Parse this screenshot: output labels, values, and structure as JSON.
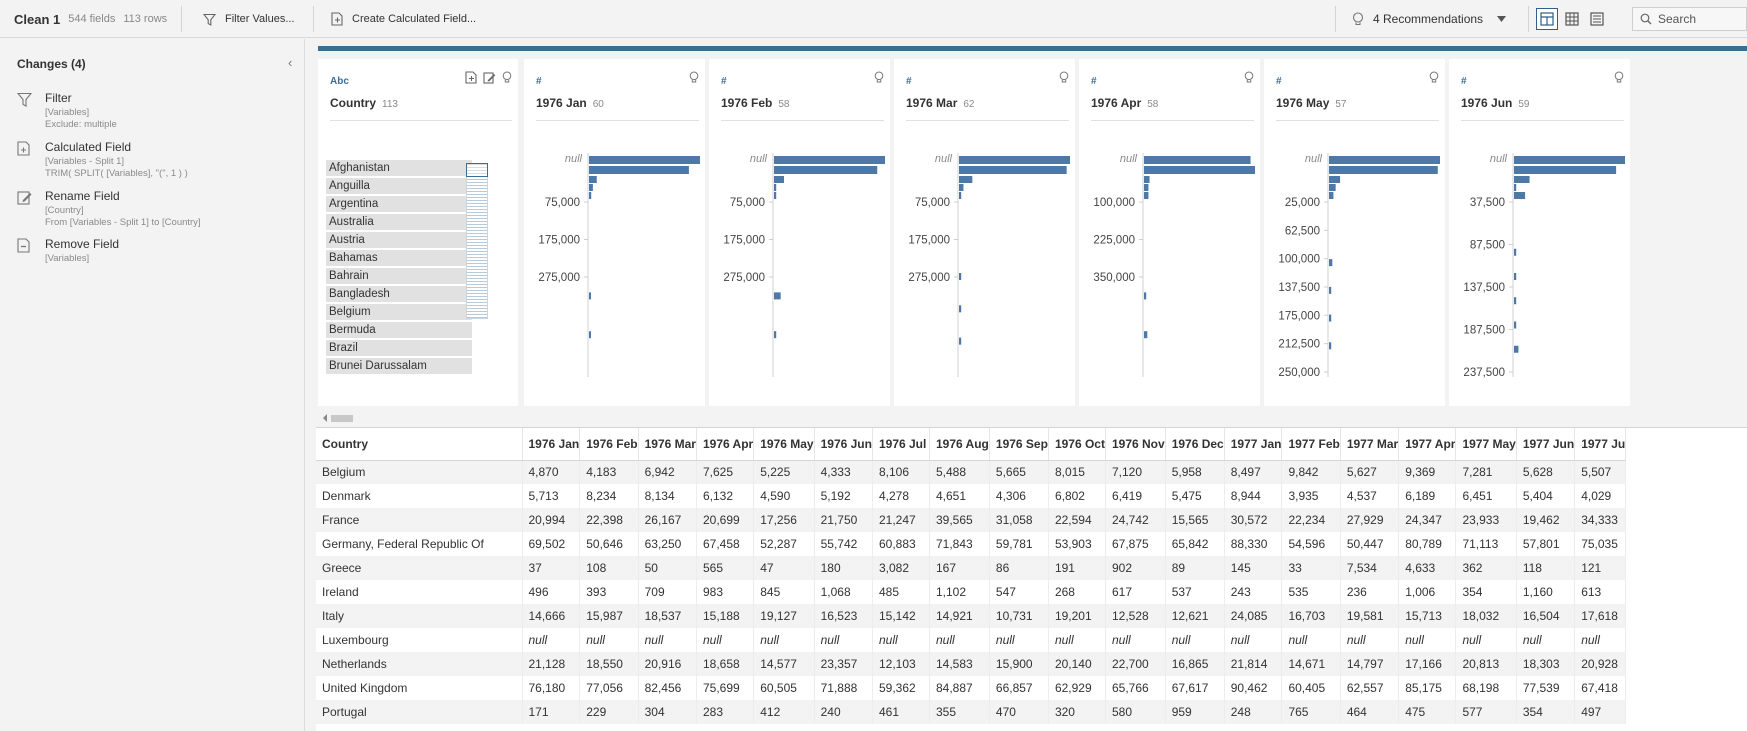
{
  "toolbar": {
    "step_title": "Clean 1",
    "field_count": "544 fields",
    "row_count": "113 rows",
    "filter_values_label": "Filter Values...",
    "calc_field_label": "Create Calculated Field...",
    "recommendations_label": "4 Recommendations",
    "search_placeholder": "Search"
  },
  "changes": {
    "header": "Changes (4)",
    "items": [
      {
        "icon": "filter-icon",
        "title": "Filter",
        "details": [
          "[Variables]",
          "Exclude: multiple"
        ]
      },
      {
        "icon": "calculated-field-icon",
        "title": "Calculated Field",
        "details": [
          "[Variables - Split 1]",
          "TRIM( SPLIT( [Variables], \"(\", 1 ) )"
        ]
      },
      {
        "icon": "rename-icon",
        "title": "Rename Field",
        "details": [
          "[Country]",
          "From [Variables - Split 1] to [Country]"
        ]
      },
      {
        "icon": "remove-field-icon",
        "title": "Remove Field",
        "details": [
          "[Variables]"
        ]
      }
    ]
  },
  "profile": {
    "country_card": {
      "type_label": "Abc",
      "name": "Country",
      "count": "113",
      "values": [
        "Afghanistan",
        "Anguilla",
        "Argentina",
        "Australia",
        "Austria",
        "Bahamas",
        "Bahrain",
        "Bangladesh",
        "Belgium",
        "Bermuda",
        "Brazil",
        "Brunei Darussalam"
      ]
    },
    "numeric_cards": [
      {
        "type_label": "#",
        "name": "1976 Jan",
        "count": "60",
        "null_label": "null",
        "ticks": [
          "75,000",
          "175,000",
          "275,000"
        ],
        "bar_lengths": [
          1.0,
          0.9,
          0.07,
          0.035,
          0.02,
          0.015,
          0.015
        ]
      },
      {
        "type_label": "#",
        "name": "1976 Feb",
        "count": "58",
        "null_label": "null",
        "ticks": [
          "75,000",
          "175,000",
          "275,000"
        ],
        "bar_lengths": [
          1.0,
          0.93,
          0.09,
          0.02,
          0.02,
          0.06,
          0.02
        ]
      },
      {
        "type_label": "#",
        "name": "1976 Mar",
        "count": "62",
        "null_label": "null",
        "ticks": [
          "75,000",
          "175,000",
          "275,000"
        ],
        "bar_lengths": [
          1.0,
          0.97,
          0.12,
          0.04,
          0.02,
          0.02,
          0.02,
          0.02
        ]
      },
      {
        "type_label": "#",
        "name": "1976 Apr",
        "count": "58",
        "null_label": "null",
        "ticks": [
          "100,000",
          "225,000",
          "350,000"
        ],
        "bar_lengths": [
          0.96,
          1.0,
          0.05,
          0.04,
          0.04,
          0.02,
          0.03
        ]
      },
      {
        "type_label": "#",
        "name": "1976 May",
        "count": "57",
        "null_label": "null",
        "ticks": [
          "25,000",
          "62,500",
          "100,000",
          "137,500",
          "175,000",
          "212,500",
          "250,000"
        ],
        "bar_lengths": [
          1.0,
          0.98,
          0.1,
          0.06,
          0.04,
          0.03,
          0.02,
          0.02,
          0.02
        ]
      },
      {
        "type_label": "#",
        "name": "1976 Jun",
        "count": "59",
        "null_label": "null",
        "ticks": [
          "37,500",
          "87,500",
          "137,500",
          "187,500",
          "237,500"
        ],
        "bar_lengths": [
          1.0,
          0.92,
          0.14,
          0.02,
          0.1,
          0.02,
          0.02,
          0.02,
          0.02,
          0.04
        ]
      }
    ]
  },
  "grid": {
    "columns": [
      "Country",
      "1976 Jan",
      "1976 Feb",
      "1976 Mar",
      "1976 Apr",
      "1976 May",
      "1976 Jun",
      "1976 Jul",
      "1976 Aug",
      "1976 Sep",
      "1976 Oct",
      "1976 Nov",
      "1976 Dec",
      "1977 Jan",
      "1977 Feb",
      "1977 Mar",
      "1977 Apr",
      "1977 May",
      "1977 Jun",
      "1977 Ju"
    ],
    "rows": [
      [
        "Belgium",
        "4,870",
        "4,183",
        "6,942",
        "7,625",
        "5,225",
        "4,333",
        "8,106",
        "5,488",
        "5,665",
        "8,015",
        "7,120",
        "5,958",
        "8,497",
        "9,842",
        "5,627",
        "9,369",
        "7,281",
        "5,628",
        "5,507"
      ],
      [
        "Denmark",
        "5,713",
        "8,234",
        "8,134",
        "6,132",
        "4,590",
        "5,192",
        "4,278",
        "4,651",
        "4,306",
        "6,802",
        "6,419",
        "5,475",
        "8,944",
        "3,935",
        "4,537",
        "6,189",
        "6,451",
        "5,404",
        "4,029"
      ],
      [
        "France",
        "20,994",
        "22,398",
        "26,167",
        "20,699",
        "17,256",
        "21,750",
        "21,247",
        "39,565",
        "31,058",
        "22,594",
        "24,742",
        "15,565",
        "30,572",
        "22,234",
        "27,929",
        "24,347",
        "23,933",
        "19,462",
        "34,333"
      ],
      [
        "Germany, Federal Republic Of",
        "69,502",
        "50,646",
        "63,250",
        "67,458",
        "52,287",
        "55,742",
        "60,883",
        "71,843",
        "59,781",
        "53,903",
        "67,875",
        "65,842",
        "88,330",
        "54,596",
        "50,447",
        "80,789",
        "71,113",
        "57,801",
        "75,035"
      ],
      [
        "Greece",
        "37",
        "108",
        "50",
        "565",
        "47",
        "180",
        "3,082",
        "167",
        "86",
        "191",
        "902",
        "89",
        "145",
        "33",
        "7,534",
        "4,633",
        "362",
        "118",
        "121"
      ],
      [
        "Ireland",
        "496",
        "393",
        "709",
        "983",
        "845",
        "1,068",
        "485",
        "1,102",
        "547",
        "268",
        "617",
        "537",
        "243",
        "535",
        "236",
        "1,006",
        "354",
        "1,160",
        "613"
      ],
      [
        "Italy",
        "14,666",
        "15,987",
        "18,537",
        "15,188",
        "19,127",
        "16,523",
        "15,142",
        "14,921",
        "10,731",
        "19,201",
        "12,528",
        "12,621",
        "24,085",
        "16,703",
        "19,581",
        "15,713",
        "18,032",
        "16,504",
        "17,618"
      ],
      [
        "Luxembourg",
        "null",
        "null",
        "null",
        "null",
        "null",
        "null",
        "null",
        "null",
        "null",
        "null",
        "null",
        "null",
        "null",
        "null",
        "null",
        "null",
        "null",
        "null",
        "null"
      ],
      [
        "Netherlands",
        "21,128",
        "18,550",
        "20,916",
        "18,658",
        "14,577",
        "23,357",
        "12,103",
        "14,583",
        "15,900",
        "20,140",
        "22,700",
        "16,865",
        "21,814",
        "14,671",
        "14,797",
        "17,166",
        "20,813",
        "18,303",
        "20,928"
      ],
      [
        "United Kingdom",
        "76,180",
        "77,056",
        "82,456",
        "75,699",
        "60,505",
        "71,888",
        "59,362",
        "84,887",
        "66,857",
        "62,929",
        "65,766",
        "67,617",
        "90,462",
        "60,405",
        "62,557",
        "85,175",
        "68,198",
        "77,539",
        "67,418"
      ],
      [
        "Portugal",
        "171",
        "229",
        "304",
        "283",
        "412",
        "240",
        "461",
        "355",
        "470",
        "320",
        "580",
        "959",
        "248",
        "765",
        "464",
        "475",
        "577",
        "354",
        "497"
      ]
    ]
  },
  "colors": {
    "accent": "#3b6e95",
    "bar": "#4e79a7",
    "row_alt": "#f3f3f3"
  }
}
